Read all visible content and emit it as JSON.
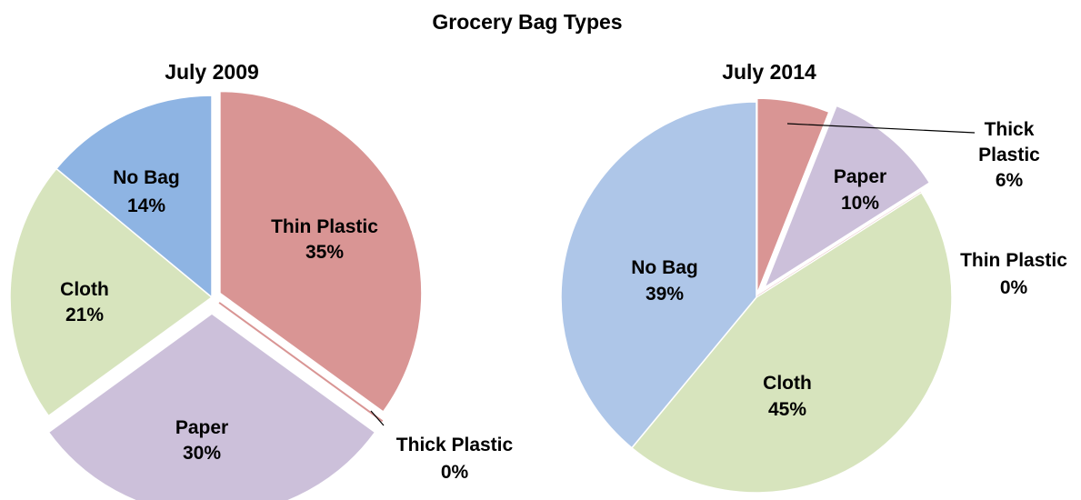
{
  "title": "Grocery Bag Types",
  "colors": {
    "Thin Plastic": "#d99594",
    "Thick Plastic": "#d99594",
    "Paper": "#ccc0da",
    "Cloth": "#d7e4bd",
    "No Bag": "#8eb4e3",
    "No Bag (2014)": "#aec6e8"
  },
  "chart_data": [
    {
      "type": "pie",
      "title": "July 2009",
      "slices": [
        {
          "label": "Thin Plastic",
          "value": 35,
          "display": "35%"
        },
        {
          "label": "Thick Plastic",
          "value": 0,
          "display": "0%"
        },
        {
          "label": "Paper",
          "value": 30,
          "display": "30%"
        },
        {
          "label": "Cloth",
          "value": 21,
          "display": "21%"
        },
        {
          "label": "No Bag",
          "value": 14,
          "display": "14%"
        }
      ]
    },
    {
      "type": "pie",
      "title": "July 2014",
      "slices": [
        {
          "label": "Thick Plastic",
          "value": 6,
          "display": "6%"
        },
        {
          "label": "Paper",
          "value": 10,
          "display": "10%"
        },
        {
          "label": "Thin Plastic",
          "value": 0,
          "display": "0%"
        },
        {
          "label": "Cloth",
          "value": 45,
          "display": "45%"
        },
        {
          "label": "No Bag",
          "value": 39,
          "display": "39%"
        }
      ]
    }
  ]
}
